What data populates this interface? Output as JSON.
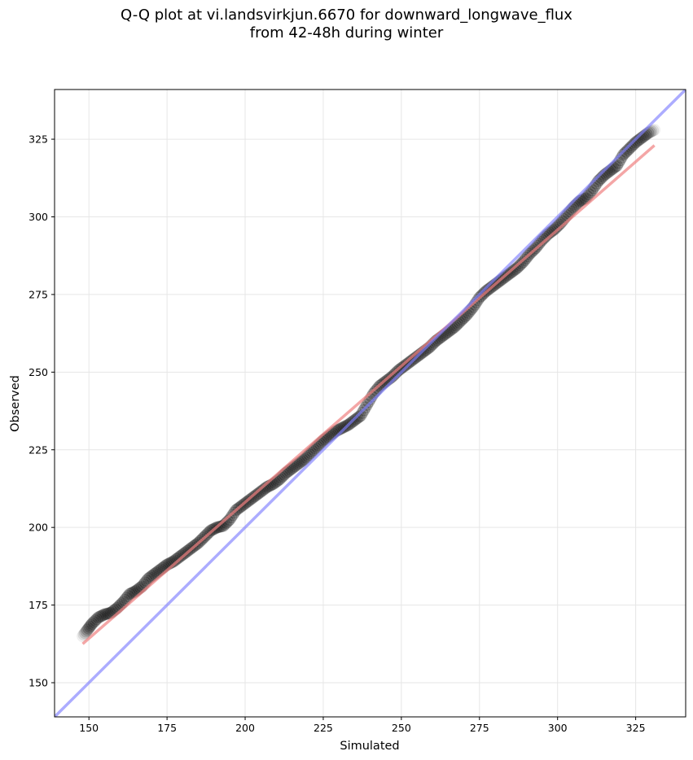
{
  "chart_data": {
    "type": "scatter",
    "title_lines": [
      "Q-Q plot at vi.landsvirkjun.6670 for downward_longwave_flux",
      "from 42-48h during winter"
    ],
    "xlabel": "Simulated",
    "ylabel": "Observed",
    "xlim": [
      139,
      341
    ],
    "ylim": [
      139,
      341
    ],
    "xticks": [
      150,
      175,
      200,
      225,
      250,
      275,
      300,
      325
    ],
    "yticks": [
      150,
      175,
      200,
      225,
      250,
      275,
      300,
      325
    ],
    "grid": true,
    "series": [
      {
        "kind": "quantile_points",
        "x": [
          148,
          149.5,
          151,
          153,
          155,
          157,
          159,
          161,
          163,
          165,
          167,
          169,
          171,
          173,
          175,
          177,
          179,
          181,
          183,
          185,
          187,
          189,
          191,
          193,
          195,
          197,
          199,
          201,
          203,
          205,
          207,
          209,
          211,
          213,
          215,
          217,
          219,
          221,
          223,
          225,
          227,
          229,
          231,
          233,
          235,
          237,
          239,
          241,
          243,
          245,
          247,
          249,
          251,
          253,
          255,
          257,
          259,
          261,
          263,
          265,
          267,
          269,
          271,
          273,
          275,
          277,
          279,
          281,
          283,
          285,
          287,
          289,
          291,
          293,
          295,
          297,
          299,
          301,
          303,
          305,
          307,
          309,
          311,
          313,
          315,
          317,
          319,
          321,
          323,
          325,
          327,
          329,
          331
        ],
        "y": [
          165,
          167,
          169,
          171,
          172,
          172.5,
          174,
          176,
          178.5,
          179.5,
          181,
          183.5,
          185,
          186.5,
          188,
          189,
          190.5,
          192,
          193.5,
          195,
          197,
          199,
          200,
          200.5,
          202.5,
          205.5,
          207,
          208.5,
          210,
          211.5,
          213,
          214,
          215.5,
          217.5,
          219,
          220.5,
          222,
          224,
          226,
          228,
          229.5,
          231,
          232,
          233,
          234.5,
          236,
          239.5,
          243,
          245.5,
          247,
          248.5,
          250.5,
          252,
          253.5,
          255,
          256.5,
          258,
          260,
          261.5,
          263,
          264.5,
          266.5,
          268.5,
          271,
          274,
          276,
          277.5,
          279,
          280.5,
          282,
          283.5,
          285.5,
          288,
          290,
          292.5,
          294.5,
          296,
          298,
          300.5,
          303,
          305,
          306,
          308.5,
          311.5,
          313.5,
          315,
          316.5,
          320,
          322,
          324,
          325.5,
          327,
          328
        ]
      },
      {
        "kind": "regression_line",
        "color": "#f08080",
        "x": [
          148,
          331
        ],
        "y": [
          162.5,
          323
        ]
      },
      {
        "kind": "identity_line",
        "color": "#8080ff",
        "x": [
          139,
          341
        ],
        "y": [
          139,
          341
        ]
      }
    ]
  },
  "colors": {
    "points": "#000000",
    "regression": "#f08080",
    "identity": "#8080ff",
    "grid": "#e6e6e6"
  }
}
